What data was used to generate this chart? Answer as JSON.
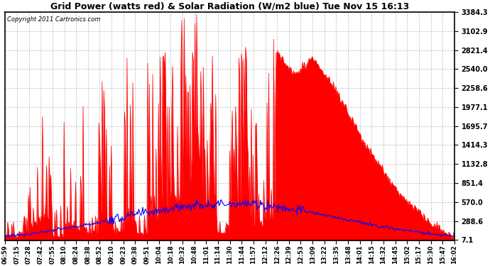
{
  "title": "Grid Power (watts red) & Solar Radiation (W/m2 blue) Tue Nov 15 16:13",
  "copyright": "Copyright 2011 Cartronics.com",
  "background_color": "#ffffff",
  "plot_bg_color": "#ffffff",
  "grid_color": "#aaaaaa",
  "yticks": [
    7.1,
    288.6,
    570.0,
    851.4,
    1132.8,
    1414.3,
    1695.7,
    1977.1,
    2258.6,
    2540.0,
    2821.4,
    3102.9,
    3384.3
  ],
  "ymin": 0,
  "ymax": 3384.3,
  "red_color": "#ff0000",
  "blue_color": "#0000ff",
  "xtick_labels": [
    "06:59",
    "07:15",
    "07:28",
    "07:42",
    "07:55",
    "08:10",
    "08:24",
    "08:38",
    "08:52",
    "09:10",
    "09:23",
    "09:38",
    "09:51",
    "10:04",
    "10:18",
    "10:32",
    "10:48",
    "11:01",
    "11:14",
    "11:30",
    "11:44",
    "11:57",
    "12:12",
    "12:26",
    "12:39",
    "12:53",
    "13:09",
    "13:22",
    "13:35",
    "13:48",
    "14:01",
    "14:15",
    "14:32",
    "14:45",
    "15:02",
    "15:17",
    "15:30",
    "15:47",
    "16:02"
  ]
}
